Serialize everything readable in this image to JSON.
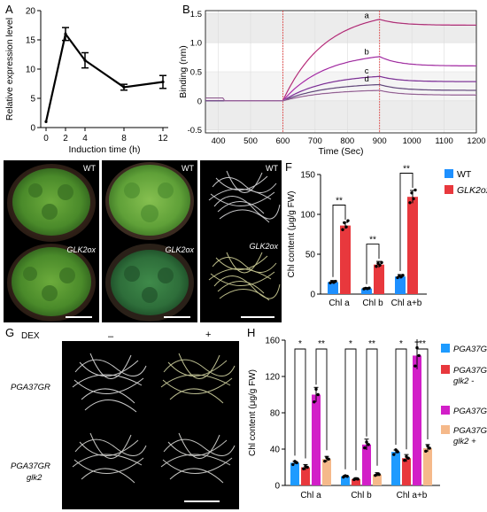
{
  "panels": {
    "A": "A",
    "B": "B",
    "C": "C",
    "D": "D",
    "E": "E",
    "F": "F",
    "G": "G",
    "H": "H"
  },
  "panel_a": {
    "chart_data": {
      "type": "line",
      "x": [
        0,
        2,
        4,
        8,
        12
      ],
      "xticks": [
        "0",
        "2",
        "4",
        "8",
        "12"
      ],
      "values": [
        1.0,
        16.0,
        11.5,
        6.9,
        7.8
      ],
      "errors": [
        0,
        1.1,
        1.3,
        0.5,
        1.1
      ],
      "xlabel": "Induction time (h)",
      "ylabel": "Relative expression level",
      "ylim": [
        0,
        20
      ],
      "yticks": [
        0,
        5,
        10,
        15,
        20
      ]
    }
  },
  "panel_b": {
    "chart_data": {
      "type": "line",
      "xlabel": "Time (Sec)",
      "ylabel": "Binding (nm)",
      "xlim": [
        360,
        1200
      ],
      "ylim": [
        -0.55,
        1.55
      ],
      "xticks": [
        400,
        500,
        600,
        700,
        800,
        900,
        1000,
        1100,
        1200
      ],
      "yticks": [
        -0.5,
        0,
        0.5,
        1.0,
        1.5
      ],
      "ytick_labels": [
        "-0.5",
        "0",
        "0.5",
        "1.0",
        "1.5"
      ],
      "vlines": [
        600,
        900
      ],
      "series": [
        {
          "label": "a",
          "color": "#e0409a",
          "baseline": 0,
          "peak": 1.4,
          "end": 1.3
        },
        {
          "label": "b",
          "color": "#d040d0",
          "baseline": 0.0,
          "peak": 0.76,
          "end": 0.6
        },
        {
          "label": "c",
          "color": "#a040c0",
          "baseline": 0.0,
          "peak": 0.42,
          "end": 0.33
        },
        {
          "label": "d",
          "color": "#8060a0",
          "baseline": 0.0,
          "peak": 0.28,
          "end": 0.18
        },
        {
          "label": "",
          "color": "#c080c0",
          "baseline": 0.0,
          "peak": 0.18,
          "end": 0.1
        }
      ]
    }
  },
  "panel_c": {
    "wt": "WT",
    "ox": "GLK2ox"
  },
  "panel_d": {
    "wt": "WT",
    "ox": "GLK2ox"
  },
  "panel_e": {
    "wt": "WT",
    "ox": "GLK2ox"
  },
  "panel_f": {
    "chart_data": {
      "type": "bar",
      "categories": [
        "Chl a",
        "Chl b",
        "Chl a+b"
      ],
      "series": [
        {
          "name": "WT",
          "color": "#1e90ff",
          "values": [
            15,
            7,
            22
          ],
          "errors": [
            2,
            1,
            2.5
          ]
        },
        {
          "name": "GLK2ox",
          "color": "#e8383d",
          "values": [
            86,
            37,
            122
          ],
          "errors": [
            4,
            4,
            8
          ]
        }
      ],
      "ylabel": "Chl content (μg/g FW)",
      "ylim": [
        0,
        150
      ],
      "yticks": [
        0,
        50,
        100,
        150
      ],
      "significance": [
        "**",
        "**",
        "**"
      ]
    }
  },
  "panel_g": {
    "dex": "DEX",
    "minus": "–",
    "plus": "+",
    "row1": "PGA37GR",
    "row2a": "PGA37GR",
    "row2b": "glk2"
  },
  "panel_h": {
    "chart_data": {
      "type": "bar",
      "categories": [
        "Chl a",
        "Chl b",
        "Chl a+b"
      ],
      "series": [
        {
          "name": "PGA37GR -",
          "color": "#1e9bff",
          "values": [
            25,
            10,
            37
          ],
          "errors": [
            1.5,
            1.2,
            2
          ]
        },
        {
          "name": "PGA37GR glk2 -",
          "color": "#e8383d",
          "values": [
            20,
            7,
            30
          ],
          "errors": [
            3,
            1.5,
            4
          ]
        },
        {
          "name": "PGA37GR +",
          "color": "#d21fc8",
          "values": [
            100,
            45,
            143
          ],
          "errors": [
            8,
            6,
            15
          ]
        },
        {
          "name": "PGA37GR glk2 +",
          "color": "#f5b98a",
          "values": [
            29,
            12,
            41
          ],
          "errors": [
            3,
            2,
            4
          ]
        }
      ],
      "ylabel": "Chl content (μg/g FW)",
      "ylim": [
        0,
        160
      ],
      "yticks": [
        0,
        40,
        80,
        120,
        160
      ],
      "significance": [
        [
          "*",
          "**"
        ],
        [
          "*",
          "**"
        ],
        [
          "*",
          "**"
        ]
      ]
    },
    "legend": [
      {
        "line1": "PGA37GR -",
        "line2": ""
      },
      {
        "line1": "PGA37GR",
        "line2": "glk2 -"
      },
      {
        "line1": "PGA37GR +",
        "line2": ""
      },
      {
        "line1": "PGA37GR",
        "line2": "glk2 +"
      }
    ]
  }
}
